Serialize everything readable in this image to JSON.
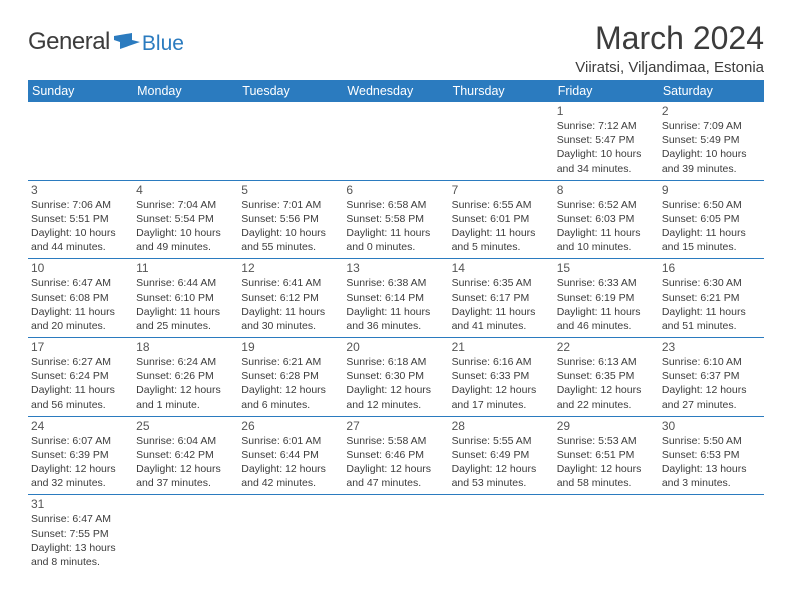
{
  "logo": {
    "text1": "General",
    "text2": "Blue",
    "icon_color": "#2b7bbf"
  },
  "header": {
    "month_title": "March 2024",
    "location": "Viiratsi, Viljandimaa, Estonia"
  },
  "colors": {
    "header_bg": "#2b7bbf",
    "header_text": "#ffffff",
    "grid_line": "#2b7bbf",
    "body_text": "#3c3c3c"
  },
  "weekdays": [
    "Sunday",
    "Monday",
    "Tuesday",
    "Wednesday",
    "Thursday",
    "Friday",
    "Saturday"
  ],
  "weeks": [
    [
      null,
      null,
      null,
      null,
      null,
      {
        "d": "1",
        "sr": "Sunrise: 7:12 AM",
        "ss": "Sunset: 5:47 PM",
        "dl1": "Daylight: 10 hours",
        "dl2": "and 34 minutes."
      },
      {
        "d": "2",
        "sr": "Sunrise: 7:09 AM",
        "ss": "Sunset: 5:49 PM",
        "dl1": "Daylight: 10 hours",
        "dl2": "and 39 minutes."
      }
    ],
    [
      {
        "d": "3",
        "sr": "Sunrise: 7:06 AM",
        "ss": "Sunset: 5:51 PM",
        "dl1": "Daylight: 10 hours",
        "dl2": "and 44 minutes."
      },
      {
        "d": "4",
        "sr": "Sunrise: 7:04 AM",
        "ss": "Sunset: 5:54 PM",
        "dl1": "Daylight: 10 hours",
        "dl2": "and 49 minutes."
      },
      {
        "d": "5",
        "sr": "Sunrise: 7:01 AM",
        "ss": "Sunset: 5:56 PM",
        "dl1": "Daylight: 10 hours",
        "dl2": "and 55 minutes."
      },
      {
        "d": "6",
        "sr": "Sunrise: 6:58 AM",
        "ss": "Sunset: 5:58 PM",
        "dl1": "Daylight: 11 hours",
        "dl2": "and 0 minutes."
      },
      {
        "d": "7",
        "sr": "Sunrise: 6:55 AM",
        "ss": "Sunset: 6:01 PM",
        "dl1": "Daylight: 11 hours",
        "dl2": "and 5 minutes."
      },
      {
        "d": "8",
        "sr": "Sunrise: 6:52 AM",
        "ss": "Sunset: 6:03 PM",
        "dl1": "Daylight: 11 hours",
        "dl2": "and 10 minutes."
      },
      {
        "d": "9",
        "sr": "Sunrise: 6:50 AM",
        "ss": "Sunset: 6:05 PM",
        "dl1": "Daylight: 11 hours",
        "dl2": "and 15 minutes."
      }
    ],
    [
      {
        "d": "10",
        "sr": "Sunrise: 6:47 AM",
        "ss": "Sunset: 6:08 PM",
        "dl1": "Daylight: 11 hours",
        "dl2": "and 20 minutes."
      },
      {
        "d": "11",
        "sr": "Sunrise: 6:44 AM",
        "ss": "Sunset: 6:10 PM",
        "dl1": "Daylight: 11 hours",
        "dl2": "and 25 minutes."
      },
      {
        "d": "12",
        "sr": "Sunrise: 6:41 AM",
        "ss": "Sunset: 6:12 PM",
        "dl1": "Daylight: 11 hours",
        "dl2": "and 30 minutes."
      },
      {
        "d": "13",
        "sr": "Sunrise: 6:38 AM",
        "ss": "Sunset: 6:14 PM",
        "dl1": "Daylight: 11 hours",
        "dl2": "and 36 minutes."
      },
      {
        "d": "14",
        "sr": "Sunrise: 6:35 AM",
        "ss": "Sunset: 6:17 PM",
        "dl1": "Daylight: 11 hours",
        "dl2": "and 41 minutes."
      },
      {
        "d": "15",
        "sr": "Sunrise: 6:33 AM",
        "ss": "Sunset: 6:19 PM",
        "dl1": "Daylight: 11 hours",
        "dl2": "and 46 minutes."
      },
      {
        "d": "16",
        "sr": "Sunrise: 6:30 AM",
        "ss": "Sunset: 6:21 PM",
        "dl1": "Daylight: 11 hours",
        "dl2": "and 51 minutes."
      }
    ],
    [
      {
        "d": "17",
        "sr": "Sunrise: 6:27 AM",
        "ss": "Sunset: 6:24 PM",
        "dl1": "Daylight: 11 hours",
        "dl2": "and 56 minutes."
      },
      {
        "d": "18",
        "sr": "Sunrise: 6:24 AM",
        "ss": "Sunset: 6:26 PM",
        "dl1": "Daylight: 12 hours",
        "dl2": "and 1 minute."
      },
      {
        "d": "19",
        "sr": "Sunrise: 6:21 AM",
        "ss": "Sunset: 6:28 PM",
        "dl1": "Daylight: 12 hours",
        "dl2": "and 6 minutes."
      },
      {
        "d": "20",
        "sr": "Sunrise: 6:18 AM",
        "ss": "Sunset: 6:30 PM",
        "dl1": "Daylight: 12 hours",
        "dl2": "and 12 minutes."
      },
      {
        "d": "21",
        "sr": "Sunrise: 6:16 AM",
        "ss": "Sunset: 6:33 PM",
        "dl1": "Daylight: 12 hours",
        "dl2": "and 17 minutes."
      },
      {
        "d": "22",
        "sr": "Sunrise: 6:13 AM",
        "ss": "Sunset: 6:35 PM",
        "dl1": "Daylight: 12 hours",
        "dl2": "and 22 minutes."
      },
      {
        "d": "23",
        "sr": "Sunrise: 6:10 AM",
        "ss": "Sunset: 6:37 PM",
        "dl1": "Daylight: 12 hours",
        "dl2": "and 27 minutes."
      }
    ],
    [
      {
        "d": "24",
        "sr": "Sunrise: 6:07 AM",
        "ss": "Sunset: 6:39 PM",
        "dl1": "Daylight: 12 hours",
        "dl2": "and 32 minutes."
      },
      {
        "d": "25",
        "sr": "Sunrise: 6:04 AM",
        "ss": "Sunset: 6:42 PM",
        "dl1": "Daylight: 12 hours",
        "dl2": "and 37 minutes."
      },
      {
        "d": "26",
        "sr": "Sunrise: 6:01 AM",
        "ss": "Sunset: 6:44 PM",
        "dl1": "Daylight: 12 hours",
        "dl2": "and 42 minutes."
      },
      {
        "d": "27",
        "sr": "Sunrise: 5:58 AM",
        "ss": "Sunset: 6:46 PM",
        "dl1": "Daylight: 12 hours",
        "dl2": "and 47 minutes."
      },
      {
        "d": "28",
        "sr": "Sunrise: 5:55 AM",
        "ss": "Sunset: 6:49 PM",
        "dl1": "Daylight: 12 hours",
        "dl2": "and 53 minutes."
      },
      {
        "d": "29",
        "sr": "Sunrise: 5:53 AM",
        "ss": "Sunset: 6:51 PM",
        "dl1": "Daylight: 12 hours",
        "dl2": "and 58 minutes."
      },
      {
        "d": "30",
        "sr": "Sunrise: 5:50 AM",
        "ss": "Sunset: 6:53 PM",
        "dl1": "Daylight: 13 hours",
        "dl2": "and 3 minutes."
      }
    ],
    [
      {
        "d": "31",
        "sr": "Sunrise: 6:47 AM",
        "ss": "Sunset: 7:55 PM",
        "dl1": "Daylight: 13 hours",
        "dl2": "and 8 minutes."
      },
      null,
      null,
      null,
      null,
      null,
      null
    ]
  ]
}
